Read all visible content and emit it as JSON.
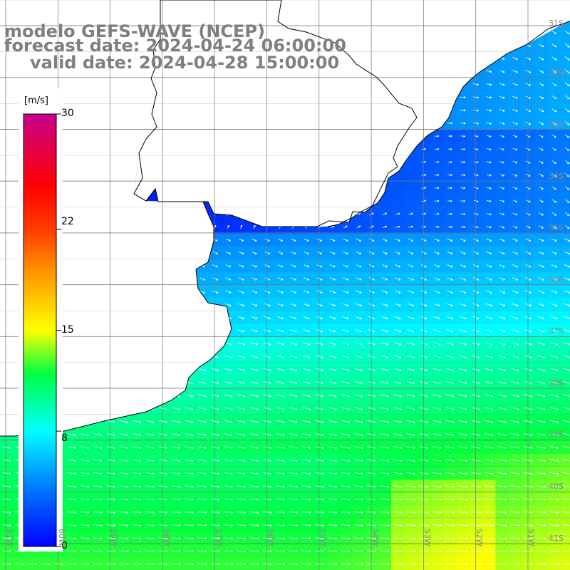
{
  "titles": {
    "model": "modelo GEFS-WAVE (NCEP)",
    "forecast": "forecast date: 2024-04-24 06:00:00",
    "valid": "valid date: 2024-04-28 15:00:00"
  },
  "colorbar": {
    "unit": "[m/s]",
    "min": 0,
    "max": 30,
    "tick_labels": [
      "30",
      "22",
      "15",
      "8",
      "0"
    ],
    "tick_values": [
      30,
      22,
      15,
      8,
      0
    ],
    "stops": [
      {
        "value": 0,
        "color": "#0000ff"
      },
      {
        "value": 4,
        "color": "#0078ff"
      },
      {
        "value": 8,
        "color": "#00ffff"
      },
      {
        "value": 12,
        "color": "#00ff40"
      },
      {
        "value": 15,
        "color": "#ffff00"
      },
      {
        "value": 19,
        "color": "#ff9600"
      },
      {
        "value": 22,
        "color": "#ff3c00"
      },
      {
        "value": 25,
        "color": "#ff0000"
      },
      {
        "value": 30,
        "color": "#c8008c"
      }
    ]
  },
  "map": {
    "background_color": "#ffffff",
    "land_color": "#ffffff",
    "grid_color": "#777777",
    "coast_color": "#000000",
    "arrow_color": "#ffffff",
    "lon_labels": [
      "61W",
      "60W",
      "59W",
      "58W",
      "57W",
      "56W",
      "55W",
      "54W",
      "53W",
      "52W",
      "51W"
    ],
    "lat_labels": [
      "31S",
      "32S",
      "33S",
      "34S",
      "35S",
      "36S",
      "37S",
      "38S",
      "39S",
      "40S",
      "41S"
    ],
    "wind_field": {
      "source": "GEFS-WAVE",
      "speed_range_ms": [
        3,
        16
      ],
      "prevailing_direction": "from NW to SE"
    }
  }
}
